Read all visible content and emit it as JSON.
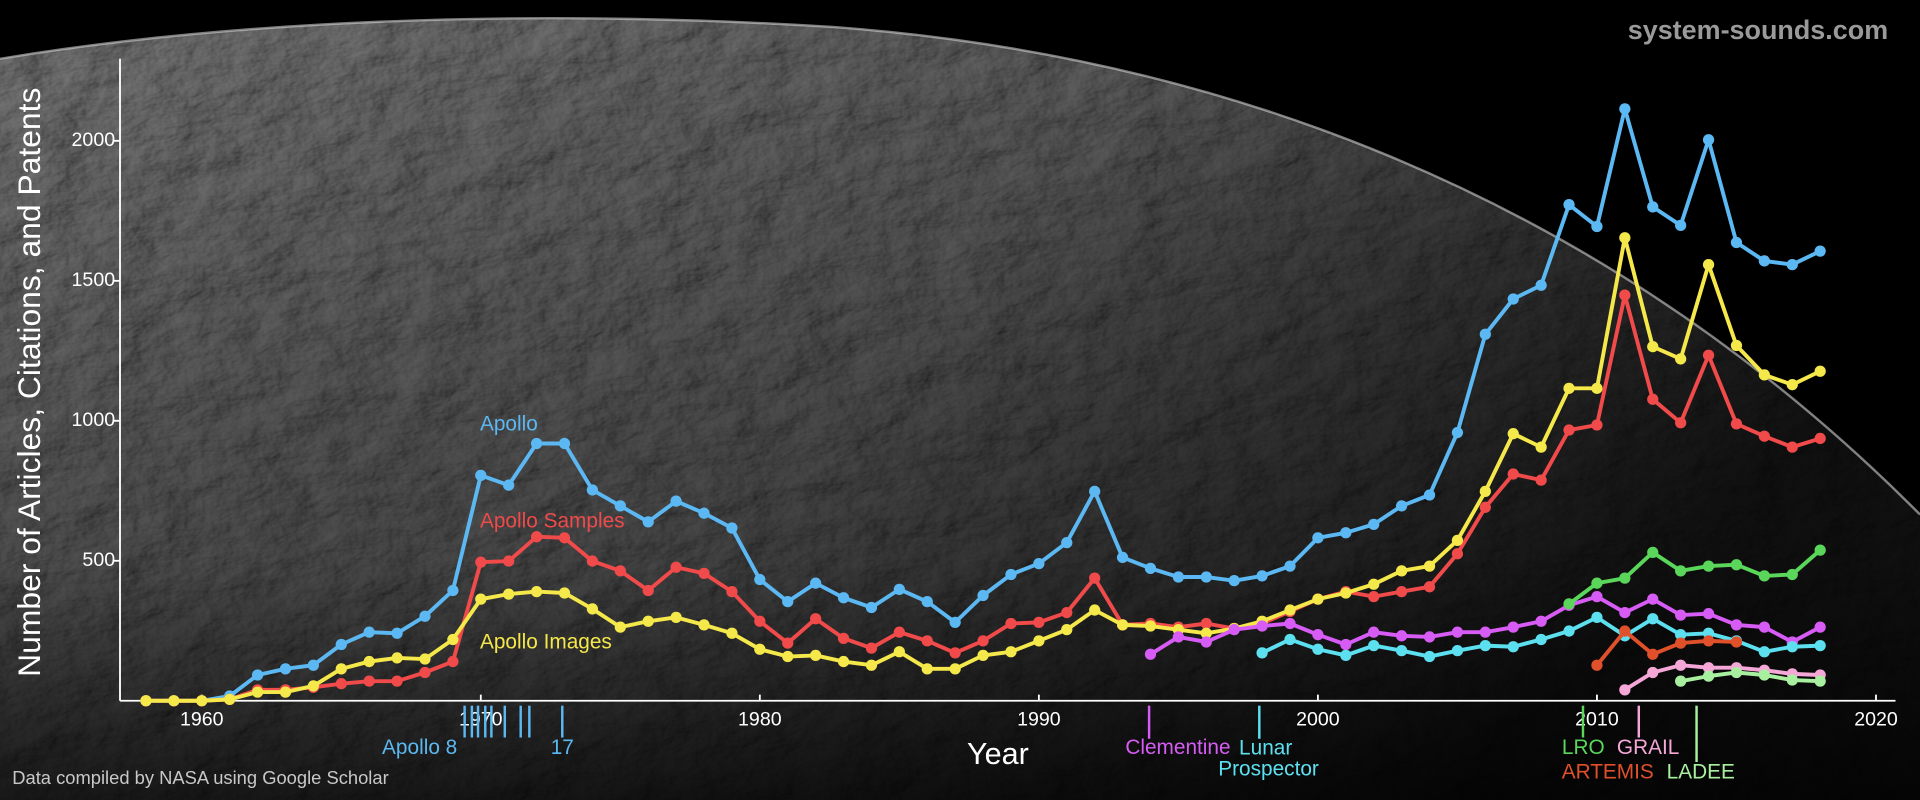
{
  "chart_data": {
    "type": "line",
    "watermark": "system-sounds.com",
    "source": "Data compiled by NASA using Google Scholar",
    "x_label": "Year",
    "y_label": "Number of Articles, Citations, and Patents",
    "xlim": [
      1957.07,
      2020.7
    ],
    "ylim": [
      0,
      2293
    ],
    "xticks": [
      1960,
      1970,
      1980,
      1990,
      2000,
      2010,
      2020
    ],
    "yticks": [
      500,
      1000,
      1500,
      2000
    ],
    "series": [
      {
        "name": "Apollo",
        "color": "#5cb8f2",
        "x": [
          1958,
          1959,
          1960,
          1961,
          1962,
          1963,
          1964,
          1965,
          1966,
          1967,
          1968,
          1969,
          1970,
          1971,
          1972,
          1973,
          1974,
          1975,
          1976,
          1977,
          1978,
          1979,
          1980,
          1981,
          1982,
          1983,
          1984,
          1985,
          1986,
          1987,
          1988,
          1989,
          1990,
          1991,
          1992,
          1993,
          1994,
          1995,
          1996,
          1997,
          1998,
          1999,
          2000,
          2001,
          2002,
          2003,
          2004,
          2005,
          2006,
          2007,
          2008,
          2009,
          2010,
          2011,
          2012,
          2013,
          2014,
          2015,
          2016,
          2017,
          2018
        ],
        "values": [
          0,
          0,
          0,
          17,
          92,
          114,
          127,
          201,
          245,
          241,
          302,
          394,
          805,
          770,
          919,
          919,
          753,
          696,
          639,
          713,
          670,
          617,
          433,
          354,
          420,
          368,
          333,
          398,
          354,
          280,
          376,
          451,
          490,
          565,
          748,
          512,
          473,
          442,
          442,
          429,
          446,
          481,
          582,
          600,
          630,
          696,
          735,
          958,
          1309,
          1435,
          1484,
          1772,
          1694,
          2114,
          1764,
          1698,
          2004,
          1637,
          1571,
          1558,
          1606
        ],
        "launches": [
          1969.42,
          1969.68,
          1969.9,
          1970.16,
          1970.38,
          1970.86,
          1971.43,
          1971.74,
          1972.92
        ],
        "launch_labels": [
          "Apollo 8",
          null,
          null,
          null,
          null,
          null,
          null,
          null,
          "17"
        ]
      },
      {
        "name": "Apollo Samples",
        "color": "#f04a4a",
        "x": [
          1958,
          1959,
          1960,
          1961,
          1962,
          1963,
          1964,
          1965,
          1966,
          1967,
          1968,
          1969,
          1970,
          1971,
          1972,
          1973,
          1974,
          1975,
          1976,
          1977,
          1978,
          1979,
          1980,
          1981,
          1982,
          1983,
          1984,
          1985,
          1986,
          1987,
          1988,
          1989,
          1990,
          1991,
          1992,
          1993,
          1994,
          1995,
          1996,
          1997,
          1998,
          1999,
          2000,
          2001,
          2002,
          2003,
          2004,
          2005,
          2006,
          2007,
          2008,
          2009,
          2010,
          2011,
          2012,
          2013,
          2014,
          2015,
          2016,
          2017,
          2018
        ],
        "values": [
          0,
          0,
          0,
          5,
          39,
          39,
          48,
          61,
          70,
          70,
          101,
          140,
          495,
          499,
          586,
          582,
          499,
          464,
          394,
          477,
          455,
          390,
          284,
          206,
          293,
          223,
          188,
          245,
          214,
          171,
          214,
          276,
          280,
          315,
          438,
          271,
          276,
          263,
          276,
          258,
          276,
          319,
          363,
          390,
          372,
          390,
          407,
          525,
          691,
          810,
          788,
          967,
          985,
          1449,
          1077,
          993,
          1234,
          989,
          945,
          906,
          937
        ]
      },
      {
        "name": "Apollo Images",
        "color": "#f5e84a",
        "x": [
          1958,
          1959,
          1960,
          1961,
          1962,
          1963,
          1964,
          1965,
          1966,
          1967,
          1968,
          1969,
          1970,
          1971,
          1972,
          1973,
          1974,
          1975,
          1976,
          1977,
          1978,
          1979,
          1980,
          1981,
          1982,
          1983,
          1984,
          1985,
          1986,
          1987,
          1988,
          1989,
          1990,
          1991,
          1992,
          1993,
          1994,
          1995,
          1996,
          1997,
          1998,
          1999,
          2000,
          2001,
          2002,
          2003,
          2004,
          2005,
          2006,
          2007,
          2008,
          2009,
          2010,
          2011,
          2012,
          2013,
          2014,
          2015,
          2016,
          2017,
          2018
        ],
        "values": [
          0,
          0,
          0,
          5,
          31,
          31,
          53,
          114,
          140,
          153,
          149,
          219,
          363,
          381,
          390,
          385,
          328,
          263,
          284,
          298,
          271,
          241,
          184,
          158,
          162,
          140,
          127,
          175,
          114,
          114,
          162,
          175,
          214,
          254,
          324,
          271,
          267,
          254,
          241,
          258,
          284,
          324,
          363,
          385,
          416,
          464,
          481,
          573,
          748,
          954,
          906,
          1116,
          1116,
          1654,
          1265,
          1221,
          1558,
          1269,
          1164,
          1129,
          1177
        ]
      },
      {
        "name": "Clementine",
        "color": "#d75cf5",
        "launch": 1993.95,
        "x": [
          1994,
          1995,
          1996,
          1997,
          1998,
          1999,
          2000,
          2001,
          2002,
          2003,
          2004,
          2005,
          2006,
          2007,
          2008,
          2009,
          2010,
          2011,
          2012,
          2013,
          2014,
          2015,
          2016,
          2017,
          2018
        ],
        "values": [
          166,
          228,
          210,
          254,
          267,
          276,
          236,
          201,
          245,
          232,
          228,
          245,
          245,
          263,
          284,
          341,
          372,
          315,
          363,
          306,
          311,
          271,
          263,
          210,
          263
        ]
      },
      {
        "name": "Lunar Prospector",
        "color": "#5ce0f0",
        "launch": 1997.9,
        "x": [
          1998,
          1999,
          2000,
          2001,
          2002,
          2003,
          2004,
          2005,
          2006,
          2007,
          2008,
          2009,
          2010,
          2011,
          2012,
          2013,
          2014,
          2015,
          2016,
          2017,
          2018
        ],
        "values": [
          171,
          219,
          184,
          162,
          197,
          179,
          158,
          179,
          197,
          193,
          219,
          249,
          298,
          232,
          293,
          236,
          241,
          214,
          175,
          193,
          197
        ]
      },
      {
        "name": "LRO",
        "color": "#5ad65a",
        "launch": 2009.5,
        "x": [
          2009,
          2010,
          2011,
          2012,
          2013,
          2014,
          2015,
          2016,
          2017,
          2018
        ],
        "values": [
          346,
          420,
          438,
          530,
          464,
          481,
          486,
          446,
          451,
          538
        ]
      },
      {
        "name": "ARTEMIS",
        "color": "#e0502a",
        "x": [
          2010,
          2011,
          2012,
          2013,
          2014,
          2015
        ],
        "values": [
          127,
          249,
          166,
          206,
          214,
          210
        ]
      },
      {
        "name": "GRAIL",
        "color": "#f5a8d8",
        "launch": 2011.5,
        "x": [
          2011,
          2012,
          2013,
          2014,
          2015,
          2016,
          2017,
          2018
        ],
        "values": [
          39,
          101,
          127,
          118,
          118,
          109,
          96,
          92
        ]
      },
      {
        "name": "LADEE",
        "color": "#a8f0a0",
        "launch": 2013.57,
        "x": [
          2013,
          2014,
          2015,
          2016,
          2017,
          2018
        ],
        "values": [
          70,
          88,
          101,
          92,
          74,
          70
        ]
      }
    ]
  }
}
